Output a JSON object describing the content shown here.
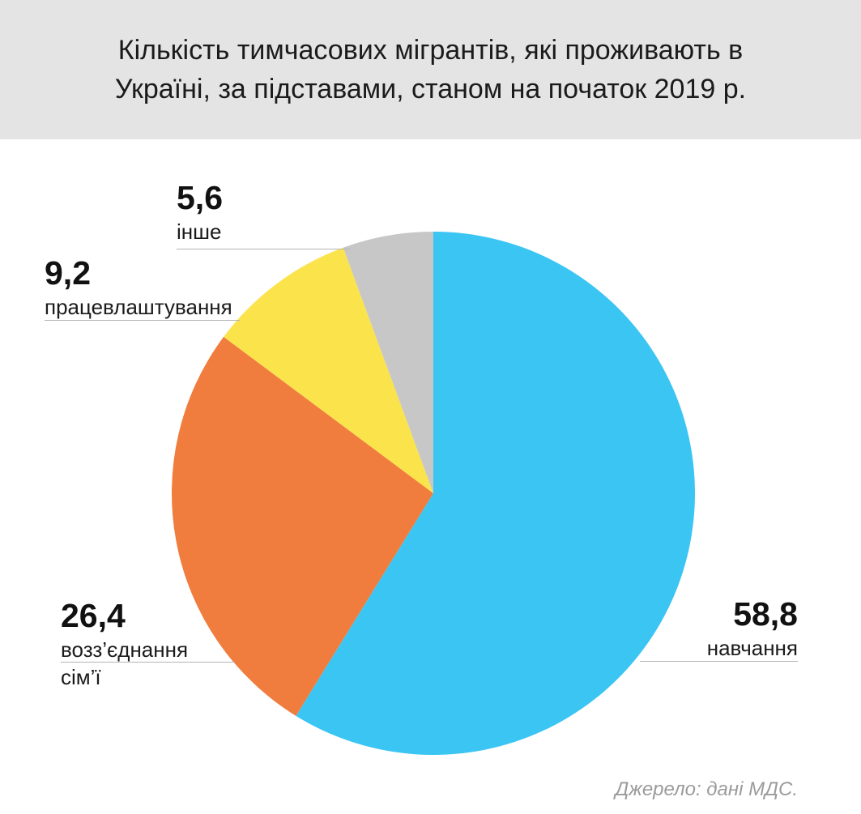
{
  "page": {
    "title": "Кількість тимчасових мігрантів, які проживають в Україні, за підставами, станом на початок 2019 р.",
    "source": "Джерело: дані МДС."
  },
  "chart_data": {
    "type": "pie",
    "title": "Кількість тимчасових мігрантів, які проживають в Україні, за підставами, станом на початок 2019 р.",
    "start_angle": "top",
    "direction": "clockwise",
    "total": 100,
    "slices": [
      {
        "label": "навчання",
        "value": 58.8,
        "display_value": "58,8",
        "color": "#3bc5f3"
      },
      {
        "label": "возз’єднання сім’ї",
        "value": 26.4,
        "display_value": "26,4",
        "color": "#f07d3d"
      },
      {
        "label": "працевлаштування",
        "value": 9.2,
        "display_value": "9,2",
        "color": "#fbe34c"
      },
      {
        "label": "інше",
        "value": 5.6,
        "display_value": "5,6",
        "color": "#c7c7c7"
      }
    ]
  }
}
